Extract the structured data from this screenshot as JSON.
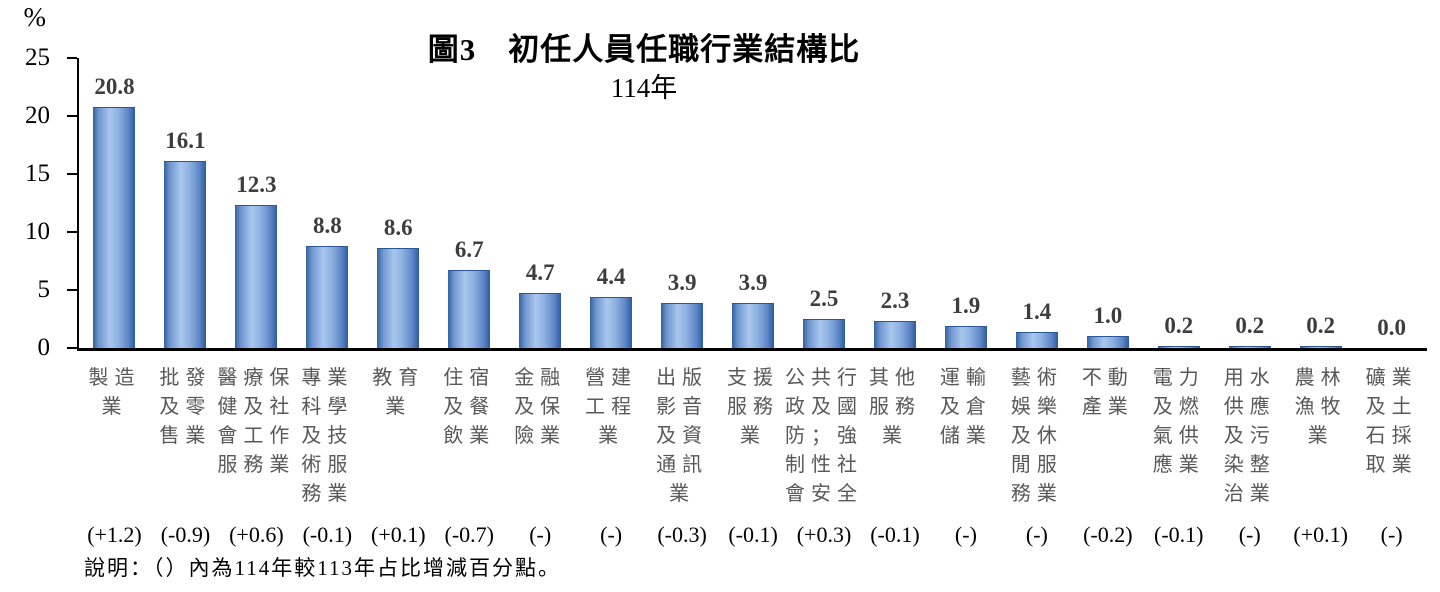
{
  "title": "圖3　初任人員任職行業結構比",
  "subtitle": "114年",
  "y_axis_unit": "%",
  "note": "說明：（）內為114年較113年占比增減百分點。",
  "accent_colors": {
    "bar_edge": "#2D5BA0",
    "bar_light": "#A9C6EE",
    "value_label": "#3d3d3d",
    "category_label": "#595959",
    "axis": "#000000"
  },
  "chart_data": {
    "type": "bar",
    "title": "圖3　初任人員任職行業結構比",
    "subtitle": "114年",
    "ylabel": "%",
    "xlabel": "",
    "ylim": [
      0,
      25
    ],
    "yticks": [
      0,
      5,
      10,
      15,
      20,
      25
    ],
    "grid": false,
    "legend": false,
    "categories": [
      "製造業",
      "批發及零售業",
      "醫療保健及社會工作服務業",
      "專業科學及技術服務業",
      "教育業",
      "住宿及餐飲業",
      "金融及保險業",
      "營建工程業",
      "出版影音及資通訊業",
      "支援服務業",
      "公共行政及國防；強制性社會安全",
      "其他服務業",
      "運輸及倉儲業",
      "藝術娛樂及休閒服務業",
      "不動產業",
      "電力及燃氣供應業",
      "用水供應及污染整治業",
      "農林漁牧業",
      "礦業及土石採取業"
    ],
    "category_label_lines": [
      [
        "製造",
        "業"
      ],
      [
        "批發",
        "及零",
        "售業"
      ],
      [
        "醫療保",
        "健及社",
        "會工作",
        "服務業"
      ],
      [
        "專業",
        "科學",
        "及技",
        "術服",
        "務業"
      ],
      [
        "教育",
        "業"
      ],
      [
        "住宿",
        "及餐",
        "飲業"
      ],
      [
        "金融",
        "及保",
        "險業"
      ],
      [
        "營建",
        "工程",
        "業"
      ],
      [
        "出版",
        "影音",
        "及資",
        "通訊",
        "業"
      ],
      [
        "支援",
        "服務",
        "業"
      ],
      [
        "公共行",
        "政及國",
        "防；強",
        "制性社",
        "會安全"
      ],
      [
        "其他",
        "服務",
        "業"
      ],
      [
        "運輸",
        "及倉",
        "儲業"
      ],
      [
        "藝術",
        "娛樂",
        "及休",
        "閒服",
        "務業"
      ],
      [
        "不動",
        "產業"
      ],
      [
        "電力",
        "及燃",
        "氣供",
        "應業"
      ],
      [
        "用水",
        "供應",
        "及污",
        "染整",
        "治業"
      ],
      [
        "農林",
        "漁牧",
        "業"
      ],
      [
        "礦業",
        "及土",
        "石採",
        "取業"
      ]
    ],
    "values": [
      20.8,
      16.1,
      12.3,
      8.8,
      8.6,
      6.7,
      4.7,
      4.4,
      3.9,
      3.9,
      2.5,
      2.3,
      1.9,
      1.4,
      1.0,
      0.2,
      0.2,
      0.2,
      0.0
    ],
    "changes": [
      "(+1.2)",
      "(-0.9)",
      "(+0.6)",
      "(-0.1)",
      "(+0.1)",
      "(-0.7)",
      "(-)",
      "(-)",
      "(-0.3)",
      "(-0.1)",
      "(+0.3)",
      "(-0.1)",
      "(-)",
      "(-)",
      "(-0.2)",
      "(-0.1)",
      "(-)",
      "(+0.1)",
      "(-)"
    ]
  }
}
